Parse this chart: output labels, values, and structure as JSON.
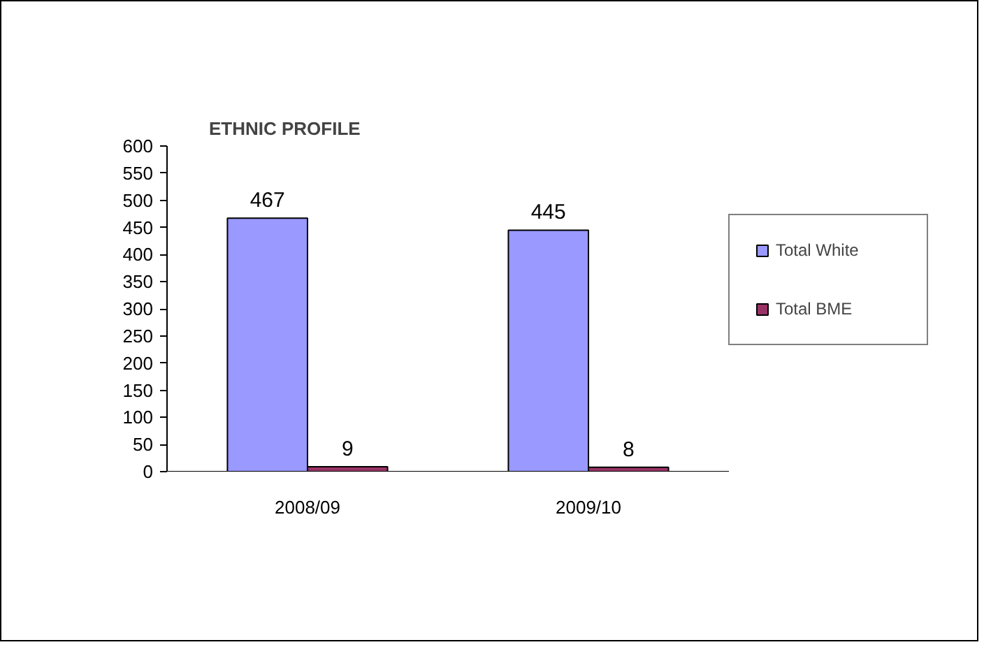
{
  "chart_data": {
    "type": "bar",
    "title": "ETHNIC PROFILE",
    "categories": [
      "2008/09",
      "2009/10"
    ],
    "series": [
      {
        "name": "Total White",
        "color": "#9999ff",
        "values": [
          467,
          445
        ]
      },
      {
        "name": "Total BME",
        "color": "#993366",
        "values": [
          9,
          8
        ]
      }
    ],
    "ylim": [
      0,
      600
    ],
    "yticks": [
      0,
      50,
      100,
      150,
      200,
      250,
      300,
      350,
      400,
      450,
      500,
      550,
      600
    ],
    "data_labels": true,
    "grid": false,
    "legend": "right"
  }
}
